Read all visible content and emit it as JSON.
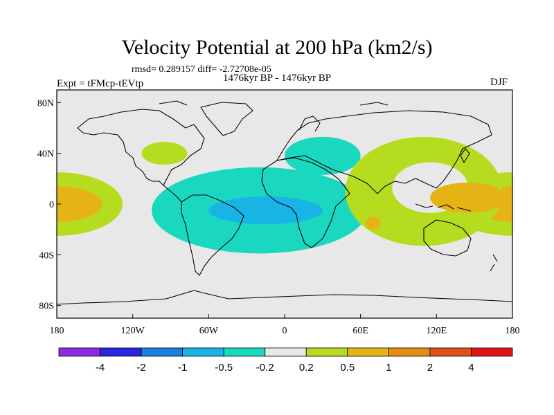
{
  "chart_data": {
    "type": "heatmap",
    "title": "Velocity Potential at 200 hPa (km2/s)",
    "stats": "rmsd= 0.289157 diff= -2.72708e-05",
    "left_label": "Expt = tFMcp-tEVtp",
    "center_label": "1476kyr BP - 1476kyr BP",
    "right_label": "DJF",
    "x_ticks": [
      {
        "value": -180,
        "label": "180"
      },
      {
        "value": -120,
        "label": "120W"
      },
      {
        "value": -60,
        "label": "60W"
      },
      {
        "value": 0,
        "label": "0"
      },
      {
        "value": 60,
        "label": "60E"
      },
      {
        "value": 120,
        "label": "120E"
      },
      {
        "value": 180,
        "label": "180"
      }
    ],
    "y_ticks": [
      {
        "value": 80,
        "label": "80N"
      },
      {
        "value": 40,
        "label": "40N"
      },
      {
        "value": 0,
        "label": "0"
      },
      {
        "value": -40,
        "label": "40S"
      },
      {
        "value": -80,
        "label": "80S"
      }
    ],
    "xlim": [
      -180,
      180
    ],
    "ylim": [
      -90,
      90
    ],
    "colorbar": {
      "levels": [
        "-4",
        "-2",
        "-1",
        "-0.5",
        "-0.2",
        "0.2",
        "0.5",
        "1",
        "2",
        "4"
      ],
      "colors": [
        "#8a2be2",
        "#2727e0",
        "#1a7fe0",
        "#19b4e6",
        "#1ad8c0",
        "#e8e8e8",
        "#b5dc1e",
        "#e5b414",
        "#e58c14",
        "#e0501e",
        "#e01414"
      ]
    },
    "regions": [
      {
        "name": "pacific-positive",
        "level": "0.2-0.5",
        "lon": -180,
        "lat": 0,
        "rlon": 52,
        "rlat": 25
      },
      {
        "name": "pacific-positive-core",
        "level": "0.5-1",
        "lon": -180,
        "lat": 0,
        "rlon": 36,
        "rlat": 14
      },
      {
        "name": "north-america-positive",
        "level": "0.2-0.5",
        "lon": -95,
        "lat": 40,
        "rlon": 18,
        "rlat": 9
      },
      {
        "name": "atlantic-negative",
        "level": "-0.5--0.2",
        "lon": -20,
        "lat": -5,
        "rlon": 85,
        "rlat": 34
      },
      {
        "name": "atlantic-negative-core",
        "level": "-1--0.5",
        "lon": -15,
        "lat": -5,
        "rlon": 45,
        "rlat": 11
      },
      {
        "name": "mediterranean-negative",
        "level": "-0.5--0.2",
        "lon": 30,
        "lat": 38,
        "rlon": 30,
        "rlat": 15
      },
      {
        "name": "west-pacific-ring",
        "level": "0.2-0.5",
        "lon": 110,
        "lat": 10,
        "rlon": 62,
        "rlat": 43
      },
      {
        "name": "indian-ocean-positive",
        "level": "0.5-1",
        "lon": 70,
        "lat": -15,
        "rlon": 6,
        "rlat": 5
      },
      {
        "name": "maritime-continent-positive",
        "level": "0.5-1",
        "lon": 145,
        "lat": 5,
        "rlon": 30,
        "rlat": 12
      }
    ]
  }
}
